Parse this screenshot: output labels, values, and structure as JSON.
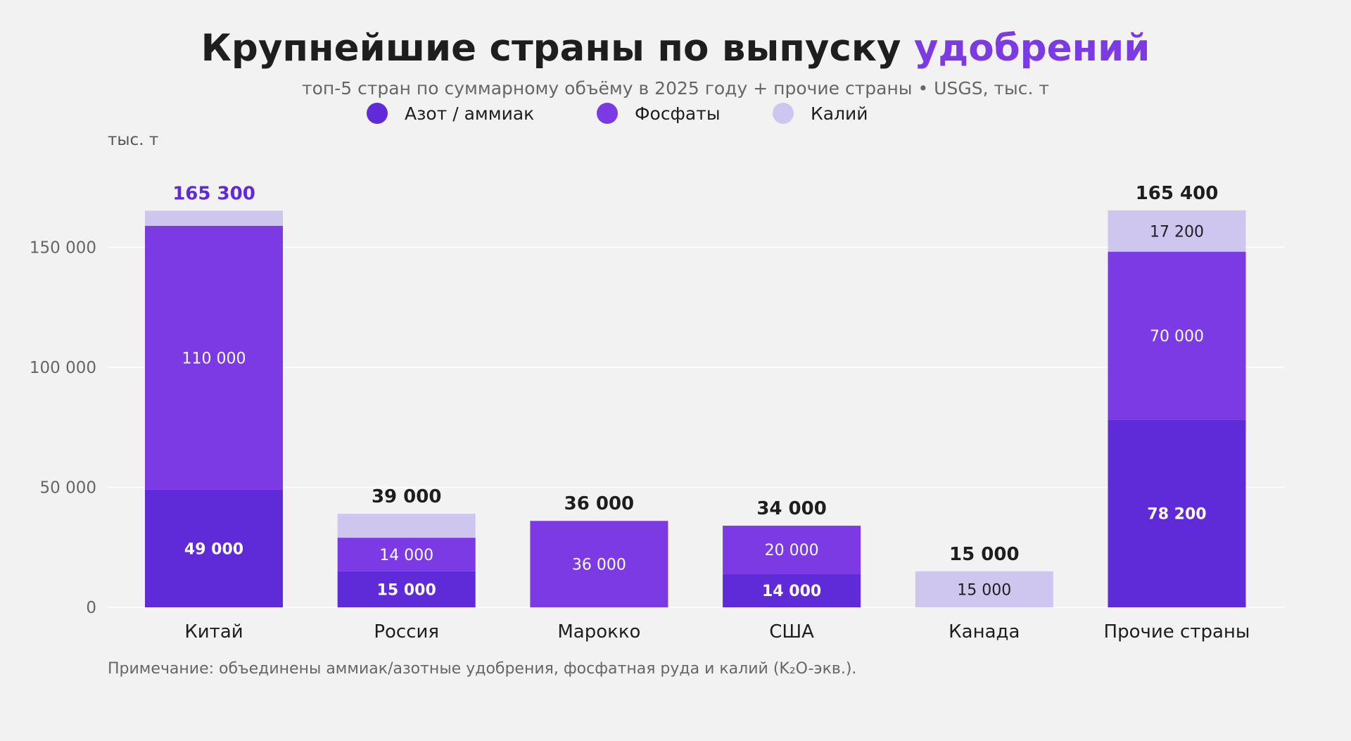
{
  "title": {
    "main": "Крупнейшие страны по выпуску",
    "accent": "удобрений"
  },
  "subtitle": "топ-5 стран по суммарному объёму в 2025 году + прочие страны • USGS, тыс. т",
  "unit_label": "тыс. т",
  "note": "Примечание: объединены аммиак/азотные удобрения, фосфатная руда и калий (K₂O-экв.).",
  "colors": {
    "nitrogen": "#5f2bd8",
    "phosphate": "#7b3ae3",
    "potash": "#cfc6f0",
    "accent": "#7b3ae3",
    "highlight_total": "#5f2bd8"
  },
  "chart_data": {
    "type": "bar",
    "stacked": true,
    "categories": [
      "Китай",
      "Россия",
      "Марокко",
      "США",
      "Канада",
      "Прочие страны"
    ],
    "series": [
      {
        "name": "Азот / аммиак",
        "values": [
          49000,
          15000,
          0,
          14000,
          0,
          78200
        ],
        "labels": [
          "49 000",
          "15 000",
          "",
          "14 000",
          "",
          "78 200"
        ]
      },
      {
        "name": "Фосфаты",
        "values": [
          110000,
          14000,
          36000,
          20000,
          0,
          70000
        ],
        "labels": [
          "110 000",
          "14 000",
          "36 000",
          "20 000",
          "",
          "70 000"
        ]
      },
      {
        "name": "Калий",
        "values": [
          6300,
          10000,
          0,
          0,
          15000,
          17200
        ],
        "labels": [
          "",
          "",
          "",
          "",
          "15 000",
          "17 200"
        ]
      }
    ],
    "totals": [
      165300,
      39000,
      36000,
      34000,
      15000,
      165400
    ],
    "total_labels": [
      "165 300",
      "39 000",
      "36 000",
      "34 000",
      "15 000",
      "165 400"
    ],
    "highlighted_total": "Китай",
    "yticks": [
      0,
      50000,
      100000,
      150000
    ],
    "ytick_labels": [
      "0",
      "50 000",
      "100 000",
      "150 000"
    ],
    "ylim": [
      0,
      180000
    ],
    "ylabel": "тыс. т",
    "grid": "horizontal",
    "legend_position": "top"
  }
}
